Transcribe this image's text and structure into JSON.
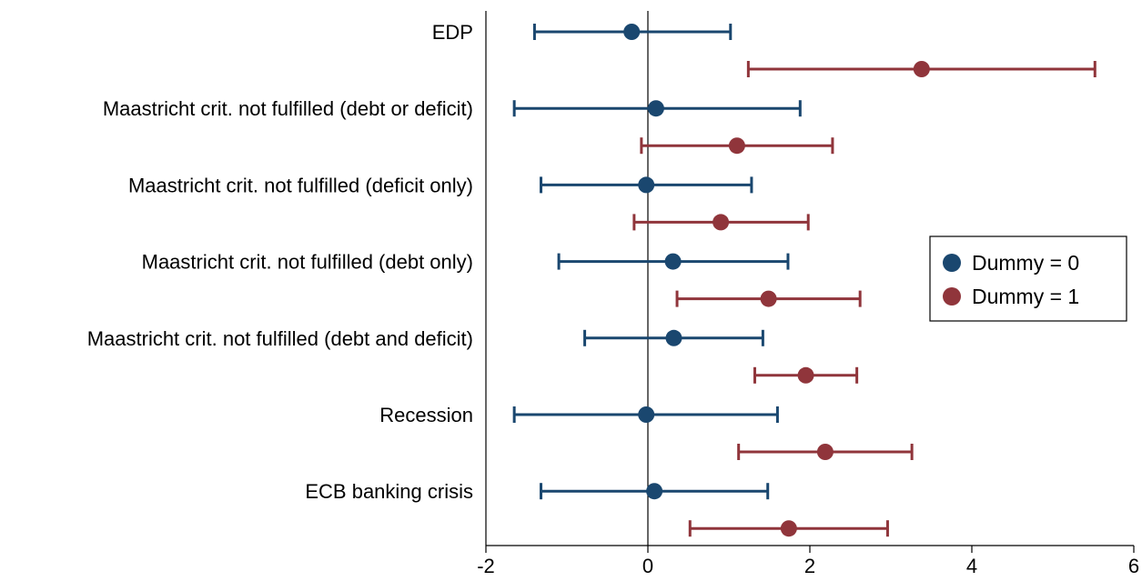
{
  "chart_data": {
    "type": "scatter",
    "subtype": "coefficient-plot-with-confidence-intervals",
    "orientation": "horizontal",
    "categories": [
      "EDP",
      "Maastricht crit. not fulfilled (debt or deficit)",
      "Maastricht crit. not fulfilled (deficit only)",
      "Maastricht crit. not fulfilled (debt only)",
      "Maastricht crit. not fulfilled (debt and deficit)",
      "Recession",
      "ECB banking crisis"
    ],
    "series": [
      {
        "name": "Dummy = 0",
        "color": "#1a476f",
        "points": [
          {
            "estimate": -0.2,
            "lower": -1.4,
            "upper": 1.02
          },
          {
            "estimate": 0.1,
            "lower": -1.65,
            "upper": 1.88
          },
          {
            "estimate": -0.02,
            "lower": -1.32,
            "upper": 1.28
          },
          {
            "estimate": 0.31,
            "lower": -1.1,
            "upper": 1.73
          },
          {
            "estimate": 0.32,
            "lower": -0.78,
            "upper": 1.42
          },
          {
            "estimate": -0.02,
            "lower": -1.65,
            "upper": 1.6
          },
          {
            "estimate": 0.08,
            "lower": -1.32,
            "upper": 1.48
          }
        ]
      },
      {
        "name": "Dummy = 1",
        "color": "#90353b",
        "points": [
          {
            "estimate": 3.38,
            "lower": 1.24,
            "upper": 5.52
          },
          {
            "estimate": 1.1,
            "lower": -0.08,
            "upper": 2.28
          },
          {
            "estimate": 0.9,
            "lower": -0.17,
            "upper": 1.98
          },
          {
            "estimate": 1.49,
            "lower": 0.36,
            "upper": 2.62
          },
          {
            "estimate": 1.95,
            "lower": 1.32,
            "upper": 2.58
          },
          {
            "estimate": 2.19,
            "lower": 1.12,
            "upper": 3.26
          },
          {
            "estimate": 1.74,
            "lower": 0.52,
            "upper": 2.96
          }
        ]
      }
    ],
    "xlim": [
      -2,
      6
    ],
    "xticks": [
      "-2",
      "0",
      "2",
      "4",
      "6"
    ],
    "reference_line_x": 0,
    "grid": false,
    "legend_position": "right",
    "title": "",
    "xlabel": "",
    "ylabel": ""
  }
}
